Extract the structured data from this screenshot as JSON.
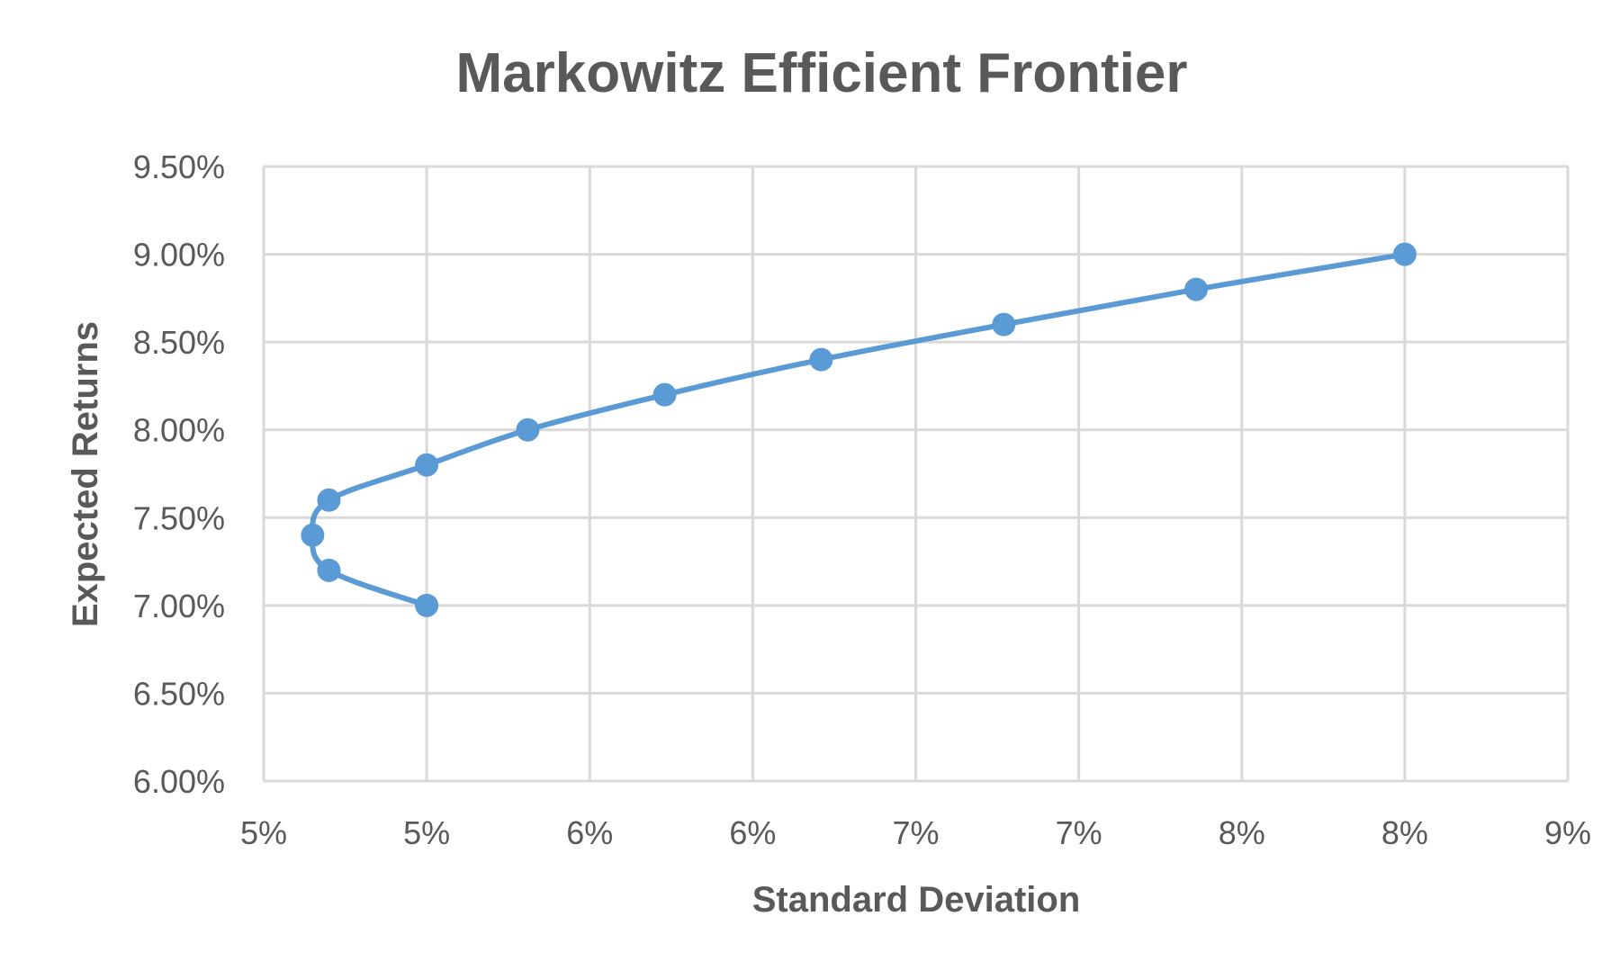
{
  "chart_data": {
    "type": "scatter",
    "title": "Markowitz Efficient Frontier",
    "xlabel": "Standard Deviation",
    "ylabel": "Expected Returns",
    "x_tick_labels": [
      "5%",
      "5%",
      "6%",
      "6%",
      "7%",
      "7%",
      "8%",
      "8%",
      "9%"
    ],
    "y_tick_labels": [
      "6.00%",
      "6.50%",
      "7.00%",
      "7.50%",
      "8.00%",
      "8.50%",
      "9.00%",
      "9.50%"
    ],
    "xlim": [
      0.045,
      0.085
    ],
    "ylim": [
      0.06,
      0.095
    ],
    "grid": true,
    "legend": "none",
    "line_style": "smooth line with markers",
    "series_color": "#5b9bd5",
    "series": [
      {
        "x": [
          0.05,
          0.047,
          0.0465,
          0.047,
          0.05,
          0.0531,
          0.0573,
          0.0621,
          0.0677,
          0.0736,
          0.08
        ],
        "y": [
          0.07,
          0.072,
          0.074,
          0.076,
          0.078,
          0.08,
          0.082,
          0.084,
          0.086,
          0.088,
          0.09
        ]
      }
    ]
  }
}
